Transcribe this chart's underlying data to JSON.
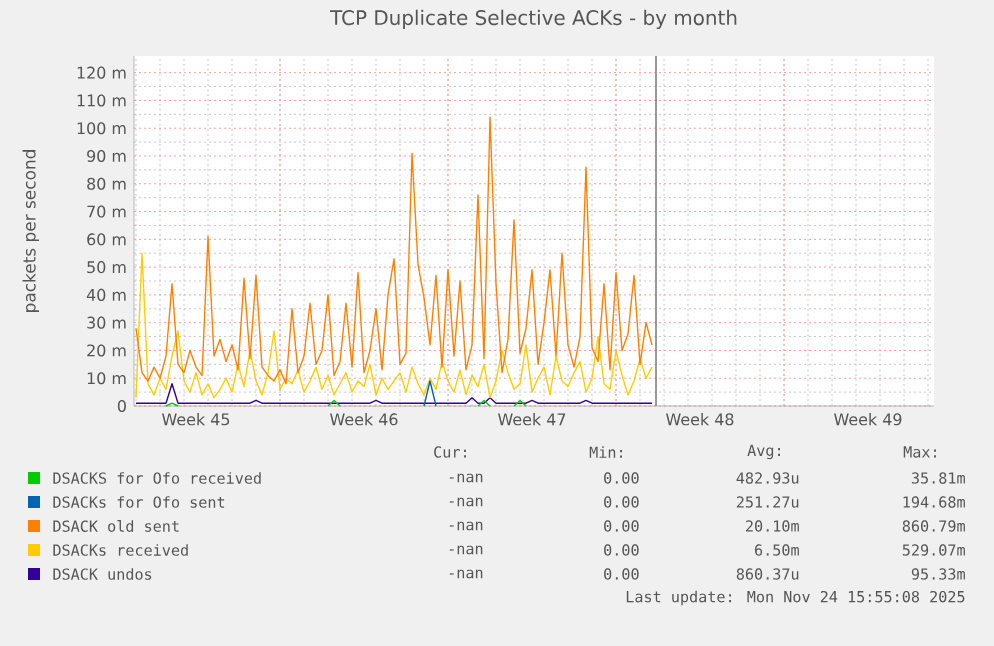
{
  "chart_data": {
    "type": "line",
    "title": "TCP Duplicate Selective ACKs - by month",
    "ylabel": "packets per second",
    "x": [
      "2025-11-03T00:00",
      "2025-11-03T06:00",
      "2025-11-03T12:00",
      "2025-11-03T18:00",
      "2025-11-04T00:00",
      "2025-11-04T06:00",
      "2025-11-04T12:00",
      "2025-11-04T18:00",
      "2025-11-05T00:00",
      "2025-11-05T06:00",
      "2025-11-05T12:00",
      "2025-11-05T18:00",
      "2025-11-06T00:00",
      "2025-11-06T06:00",
      "2025-11-06T12:00",
      "2025-11-06T18:00",
      "2025-11-07T00:00",
      "2025-11-07T06:00",
      "2025-11-07T12:00",
      "2025-11-07T18:00",
      "2025-11-08T00:00",
      "2025-11-08T06:00",
      "2025-11-08T12:00",
      "2025-11-08T18:00",
      "2025-11-09T00:00",
      "2025-11-09T06:00",
      "2025-11-09T12:00",
      "2025-11-09T18:00",
      "2025-11-10T00:00",
      "2025-11-10T06:00",
      "2025-11-10T12:00",
      "2025-11-10T18:00",
      "2025-11-11T00:00",
      "2025-11-11T06:00",
      "2025-11-11T12:00",
      "2025-11-11T18:00",
      "2025-11-12T00:00",
      "2025-11-12T06:00",
      "2025-11-12T12:00",
      "2025-11-12T18:00",
      "2025-11-13T00:00",
      "2025-11-13T06:00",
      "2025-11-13T12:00",
      "2025-11-13T18:00",
      "2025-11-14T00:00",
      "2025-11-14T06:00",
      "2025-11-14T12:00",
      "2025-11-14T18:00",
      "2025-11-15T00:00",
      "2025-11-15T06:00",
      "2025-11-15T12:00",
      "2025-11-15T18:00",
      "2025-11-16T00:00",
      "2025-11-16T06:00",
      "2025-11-16T12:00",
      "2025-11-16T18:00",
      "2025-11-17T00:00",
      "2025-11-17T06:00",
      "2025-11-17T12:00",
      "2025-11-17T18:00",
      "2025-11-18T00:00",
      "2025-11-18T06:00",
      "2025-11-18T12:00",
      "2025-11-18T18:00",
      "2025-11-19T00:00",
      "2025-11-19T06:00",
      "2025-11-19T12:00",
      "2025-11-19T18:00",
      "2025-11-20T00:00",
      "2025-11-20T06:00",
      "2025-11-20T12:00",
      "2025-11-20T18:00",
      "2025-11-21T00:00",
      "2025-11-21T06:00",
      "2025-11-21T12:00",
      "2025-11-21T18:00",
      "2025-11-22T00:00",
      "2025-11-22T06:00",
      "2025-11-22T12:00",
      "2025-11-22T18:00",
      "2025-11-23T00:00",
      "2025-11-23T06:00",
      "2025-11-23T12:00",
      "2025-11-23T18:00",
      "2025-11-24T00:00",
      "2025-11-24T06:00",
      "2025-11-24T12:00"
    ],
    "series": [
      {
        "name": "DSACKS for Ofo received",
        "color": "#00cc00",
        "values": [
          null,
          null,
          null,
          null,
          null,
          0,
          1,
          0,
          null,
          null,
          null,
          null,
          null,
          null,
          null,
          null,
          null,
          null,
          null,
          null,
          null,
          null,
          null,
          null,
          null,
          null,
          null,
          null,
          null,
          null,
          null,
          null,
          0,
          2,
          0,
          null,
          null,
          null,
          null,
          null,
          null,
          null,
          null,
          null,
          null,
          null,
          null,
          null,
          null,
          null,
          null,
          null,
          null,
          null,
          null,
          null,
          null,
          0,
          2,
          0,
          null,
          null,
          null,
          0,
          2,
          0,
          null,
          null,
          null,
          null,
          null,
          null,
          null,
          null,
          null,
          null,
          null,
          null,
          null,
          null,
          null,
          null,
          null,
          null,
          null,
          null,
          null
        ]
      },
      {
        "name": "DSACKs for Ofo sent",
        "color": "#0066b3",
        "values": [
          null,
          null,
          null,
          null,
          null,
          null,
          null,
          null,
          null,
          null,
          null,
          null,
          null,
          null,
          null,
          null,
          null,
          null,
          null,
          null,
          null,
          null,
          null,
          null,
          null,
          null,
          null,
          null,
          null,
          null,
          null,
          null,
          null,
          null,
          null,
          null,
          null,
          null,
          null,
          null,
          null,
          null,
          null,
          null,
          null,
          null,
          null,
          null,
          0,
          9,
          0,
          null,
          null,
          null,
          null,
          null,
          null,
          null,
          null,
          null,
          null,
          null,
          null,
          null,
          null,
          null,
          null,
          null,
          null,
          null,
          null,
          null,
          null,
          null,
          null,
          null,
          null,
          null,
          null,
          null,
          null,
          null,
          null,
          null,
          null,
          null,
          null
        ]
      },
      {
        "name": "DSACK old sent",
        "color": "#ff8000",
        "values": [
          28,
          12,
          9,
          14,
          10,
          18,
          44,
          15,
          12,
          20,
          14,
          11,
          61,
          18,
          24,
          16,
          22,
          13,
          46,
          17,
          47,
          14,
          11,
          9,
          13,
          8,
          35,
          12,
          18,
          37,
          15,
          20,
          40,
          11,
          16,
          37,
          14,
          48,
          12,
          20,
          35,
          13,
          40,
          53,
          15,
          19,
          91,
          51,
          39,
          22,
          47,
          14,
          49,
          18,
          45,
          13,
          22,
          76,
          17,
          104,
          44,
          12,
          24,
          67,
          19,
          28,
          49,
          15,
          30,
          49,
          18,
          55,
          22,
          14,
          25,
          86,
          21,
          16,
          44,
          13,
          48,
          20,
          26,
          47,
          15,
          30,
          22
        ]
      },
      {
        "name": "DSACKs received",
        "color": "#ffcc00",
        "values": [
          3,
          55,
          8,
          4,
          10,
          6,
          18,
          27,
          9,
          5,
          12,
          4,
          8,
          3,
          6,
          10,
          5,
          15,
          7,
          20,
          9,
          4,
          12,
          27,
          6,
          10,
          8,
          13,
          5,
          9,
          14,
          6,
          11,
          4,
          8,
          12,
          5,
          9,
          7,
          15,
          4,
          10,
          6,
          9,
          12,
          5,
          14,
          8,
          4,
          10,
          6,
          16,
          9,
          5,
          13,
          4,
          11,
          7,
          15,
          3,
          9,
          20,
          12,
          6,
          8,
          22,
          5,
          10,
          14,
          4,
          18,
          9,
          7,
          12,
          16,
          5,
          10,
          25,
          8,
          6,
          20,
          11,
          4,
          9,
          17,
          10,
          14
        ]
      },
      {
        "name": "DSACK undos",
        "color": "#330099",
        "values": [
          1,
          1,
          1,
          1,
          1,
          1,
          8,
          1,
          1,
          1,
          1,
          1,
          1,
          1,
          1,
          1,
          1,
          1,
          1,
          1,
          2,
          1,
          1,
          1,
          1,
          1,
          1,
          1,
          1,
          1,
          1,
          1,
          1,
          1,
          1,
          1,
          1,
          1,
          1,
          1,
          2,
          1,
          1,
          1,
          1,
          1,
          1,
          1,
          1,
          1,
          1,
          1,
          1,
          1,
          1,
          1,
          3,
          1,
          1,
          3,
          1,
          1,
          1,
          1,
          1,
          1,
          2,
          1,
          1,
          1,
          1,
          1,
          1,
          1,
          1,
          2,
          1,
          1,
          1,
          1,
          1,
          1,
          1,
          1,
          1,
          1,
          1
        ]
      }
    ],
    "xlim": [
      "2025-11-02T22:00",
      "2025-12-06T06:00"
    ],
    "xticks": [
      {
        "value": "2025-11-09",
        "label": null
      },
      {
        "value": "2025-11-16",
        "label": null
      },
      {
        "value": "2025-11-23",
        "label": null
      },
      {
        "value": "2025-11-30",
        "label": null
      },
      {
        "value": "2025-11-05T12:00",
        "label": "Week 45"
      },
      {
        "value": "2025-11-12T12:00",
        "label": "Week 46"
      },
      {
        "value": "2025-11-19T12:00",
        "label": "Week 47"
      },
      {
        "value": "2025-11-26T12:00",
        "label": "Week 48"
      },
      {
        "value": "2025-12-03T12:00",
        "label": "Week 49"
      }
    ],
    "ylim": [
      0,
      126
    ],
    "yticks": [
      {
        "value": 0,
        "label": "0"
      },
      {
        "value": 10,
        "label": "10 m"
      },
      {
        "value": 20,
        "label": "20 m"
      },
      {
        "value": 30,
        "label": "30 m"
      },
      {
        "value": 40,
        "label": "40 m"
      },
      {
        "value": 50,
        "label": "50 m"
      },
      {
        "value": 60,
        "label": "60 m"
      },
      {
        "value": 70,
        "label": "70 m"
      },
      {
        "value": 80,
        "label": "80 m"
      },
      {
        "value": 90,
        "label": "90 m"
      },
      {
        "value": 100,
        "label": "100 m"
      },
      {
        "value": 110,
        "label": "110 m"
      },
      {
        "value": 120,
        "label": "120 m"
      }
    ],
    "ref_lines": [
      {
        "axis": "x",
        "value": "2025-11-24T16:00",
        "color": "#808080"
      }
    ],
    "grid": true,
    "legend": "bottom",
    "annotations": [
      "Cur:",
      "Min:",
      "Avg:",
      "Max:",
      "-nan",
      "0.00",
      "482.93u",
      "35.81m",
      "-nan",
      "0.00",
      "251.27u",
      "194.68m",
      "-nan",
      "0.00",
      "20.10m",
      "860.79m",
      "-nan",
      "0.00",
      "6.50m",
      "529.07m",
      "-nan",
      "0.00",
      "860.37u",
      "95.33m",
      "Last update: Mon Nov 24 15:55:08 2025"
    ]
  }
}
